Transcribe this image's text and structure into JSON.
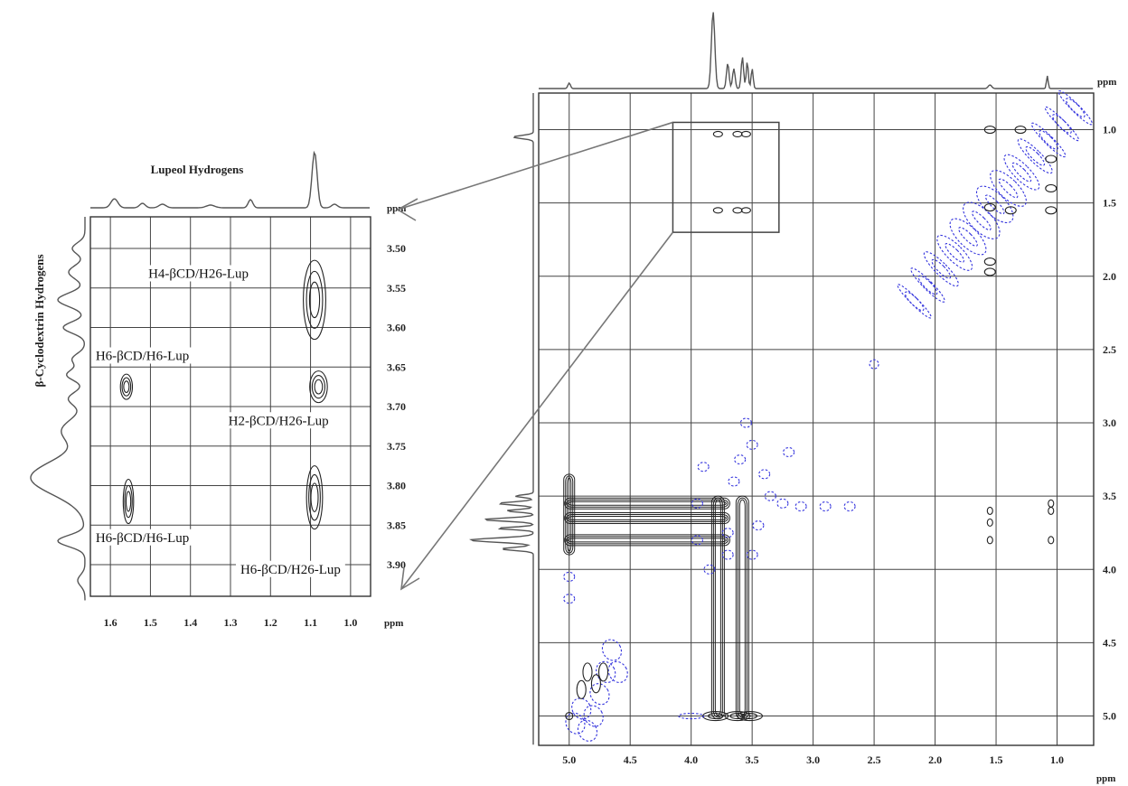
{
  "chart_data": [
    {
      "type": "heatmap",
      "description_role": "expanded inset of 2D ROESY spectrum",
      "title_x": "Lupeol Hydrogens",
      "title_y": "β-Cyclodextrin Hydrogens",
      "x_unit": "ppm",
      "y_unit": "ppm",
      "xlim": [
        1.65,
        0.95
      ],
      "ylim": [
        3.46,
        3.94
      ],
      "x_ticks": [
        "1.6",
        "1.5",
        "1.4",
        "1.3",
        "1.2",
        "1.1",
        "1.0"
      ],
      "y_ticks": [
        "3.50",
        "3.55",
        "3.60",
        "3.65",
        "3.70",
        "3.75",
        "3.80",
        "3.85",
        "3.90"
      ],
      "grid": true,
      "annotations": [
        {
          "text": "H4-βCD/H26-Lup",
          "x": 1.38,
          "y": 3.536
        },
        {
          "text": "H6-βCD/H6-Lup",
          "x": 1.52,
          "y": 3.64
        },
        {
          "text": "H2-βCD/H26-Lup",
          "x": 1.18,
          "y": 3.722
        },
        {
          "text": "H6-βCD/H6-Lup",
          "x": 1.52,
          "y": 3.87
        },
        {
          "text": "H6-βCD/H26-Lup",
          "x": 1.15,
          "y": 3.91
        }
      ],
      "cross_peaks": [
        {
          "x": 1.09,
          "y": 3.565,
          "wx": 0.028,
          "wy": 0.05
        },
        {
          "x": 1.56,
          "y": 3.675,
          "wx": 0.015,
          "wy": 0.016
        },
        {
          "x": 1.08,
          "y": 3.675,
          "wx": 0.022,
          "wy": 0.02
        },
        {
          "x": 1.555,
          "y": 3.82,
          "wx": 0.013,
          "wy": 0.028
        },
        {
          "x": 1.09,
          "y": 3.815,
          "wx": 0.02,
          "wy": 0.04
        }
      ]
    },
    {
      "type": "heatmap",
      "description_role": "full 2D ROESY spectrum",
      "x_unit": "ppm",
      "y_unit": "ppm",
      "xlim": [
        5.25,
        0.7
      ],
      "ylim": [
        0.75,
        5.2
      ],
      "x_ticks": [
        "5.0",
        "4.5",
        "4.0",
        "3.5",
        "3.0",
        "2.5",
        "2.0",
        "1.5",
        "1.0"
      ],
      "y_ticks": [
        "1.0",
        "1.5",
        "2.0",
        "2.5",
        "3.0",
        "3.5",
        "4.0",
        "4.5",
        "5.0"
      ],
      "grid": true,
      "zoom_box": {
        "x": [
          4.15,
          3.28
        ],
        "y": [
          0.95,
          1.7
        ]
      },
      "series": [
        {
          "name": "positive",
          "color": "#222222"
        },
        {
          "name": "negative",
          "color": "#3333dd"
        }
      ]
    }
  ],
  "colors": {
    "contour_black": "#222222",
    "contour_blue": "#3333dd",
    "grid": "#444444",
    "arrow": "#777777"
  }
}
